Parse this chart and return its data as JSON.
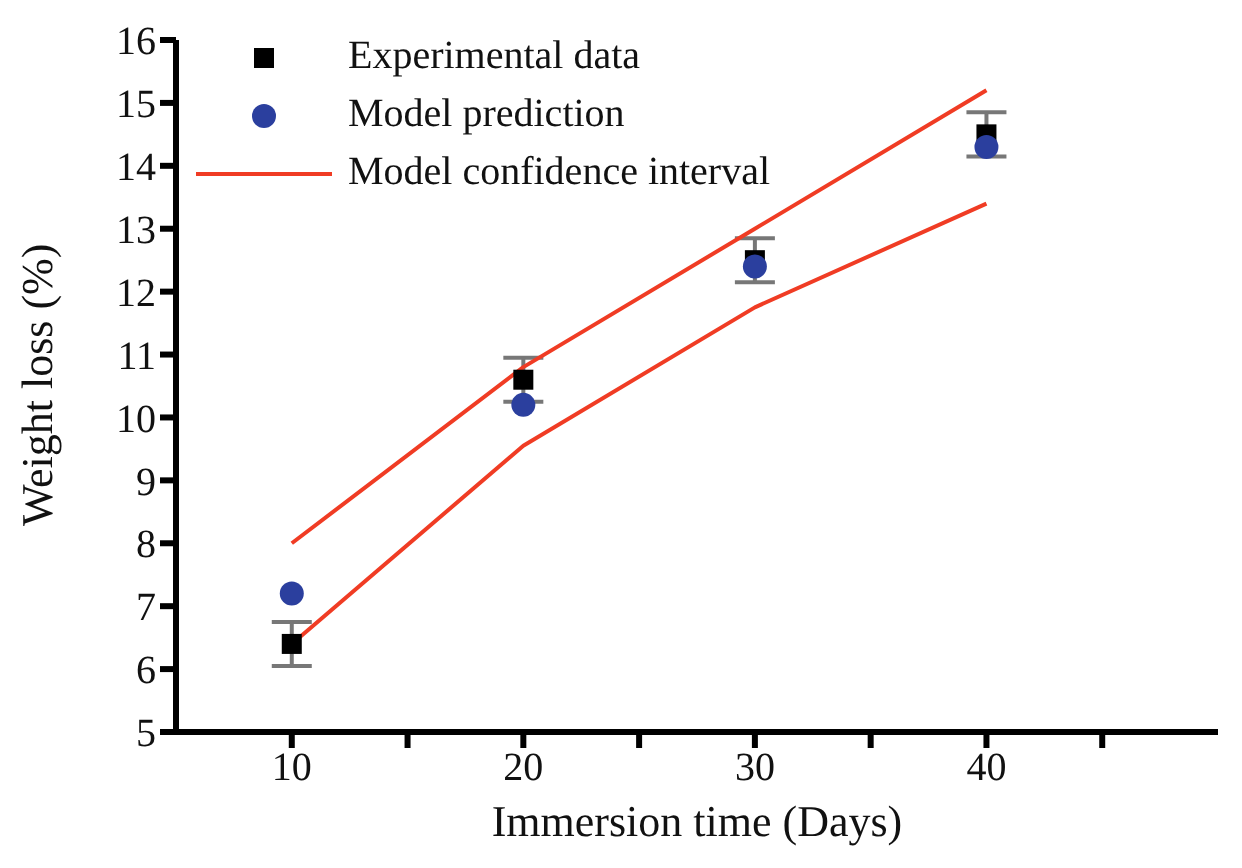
{
  "chart_data": {
    "type": "scatter",
    "xlabel": "Immersion time (Days)",
    "ylabel": "Weight loss (%)",
    "x": [
      10,
      20,
      30,
      40
    ],
    "series": [
      {
        "name": "Experimental data",
        "type": "scatter",
        "marker": "square",
        "color": "#000000",
        "values": [
          6.4,
          10.6,
          12.5,
          14.5
        ],
        "errors": [
          0.35,
          0.35,
          0.35,
          0.35
        ]
      },
      {
        "name": "Model prediction",
        "type": "scatter",
        "marker": "circle",
        "color": "#2b3f9e",
        "values": [
          7.2,
          10.2,
          12.4,
          14.3
        ]
      },
      {
        "name": "Model confidence interval",
        "type": "line",
        "color": "#f03c24",
        "values": [
          8.0,
          10.8,
          13.0,
          15.2
        ]
      },
      {
        "type": "line",
        "color": "#f03c24",
        "values": [
          6.4,
          9.55,
          11.75,
          13.4
        ]
      }
    ],
    "xlim": [
      5,
      50
    ],
    "xticks": [
      10,
      {
        "value": 15,
        "label": null
      },
      20,
      {
        "value": 25,
        "label": null
      },
      30,
      {
        "value": 35,
        "label": null
      },
      40,
      {
        "value": 45,
        "label": null
      }
    ],
    "ylim": [
      5,
      16
    ],
    "yticks": [
      5,
      6,
      7,
      8,
      9,
      10,
      11,
      12,
      13,
      14,
      15,
      16
    ],
    "grid": false,
    "legend": "top left"
  }
}
